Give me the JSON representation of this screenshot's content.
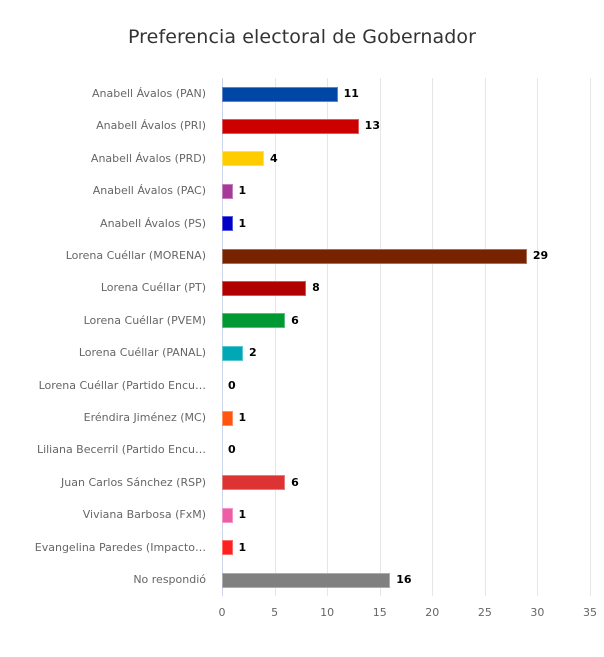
{
  "chart_data": {
    "type": "bar",
    "orientation": "horizontal",
    "title": "Preferencia electoral de Gobernador",
    "xlabel": "",
    "ylabel": "",
    "xlim": [
      0,
      35
    ],
    "xticks": [
      0,
      5,
      10,
      15,
      20,
      25,
      30,
      35
    ],
    "grid": true,
    "legend": null,
    "categories": [
      "Anabell Ávalos (PAN)",
      "Anabell Ávalos (PRI)",
      "Anabell Ávalos (PRD)",
      "Anabell Ávalos (PAC)",
      "Anabell Ávalos (PS)",
      "Lorena Cuéllar (MORENA)",
      "Lorena Cuéllar (PT)",
      "Lorena Cuéllar (PVEM)",
      "Lorena Cuéllar (PANAL)",
      "Lorena Cuéllar (Partido Encu…",
      "Eréndira Jiménez (MC)",
      "Liliana Becerril (Partido Encu…",
      "Juan Carlos Sánchez (RSP)",
      "Viviana Barbosa (FxM)",
      "Evangelina Paredes (Impacto…",
      "No respondió"
    ],
    "values": [
      11,
      13,
      4,
      1,
      1,
      29,
      8,
      6,
      2,
      0,
      1,
      0,
      6,
      1,
      1,
      16
    ],
    "colors": [
      "#0046a5",
      "#cc0000",
      "#ffcc00",
      "#a73a98",
      "#0000c8",
      "#772300",
      "#b00000",
      "#009933",
      "#00a7b5",
      "#cccccc",
      "#ff5511",
      "#cccccc",
      "#dd3333",
      "#ee5ea6",
      "#ff2020",
      "#808080"
    ]
  }
}
